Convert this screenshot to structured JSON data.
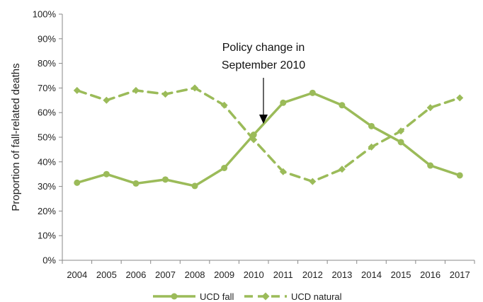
{
  "chart_data": {
    "type": "line",
    "title": "",
    "xlabel": "",
    "ylabel": "Proportion of fall-related deaths",
    "categories": [
      "2004",
      "2005",
      "2006",
      "2007",
      "2008",
      "2009",
      "2010",
      "2011",
      "2012",
      "2013",
      "2014",
      "2015",
      "2016",
      "2017"
    ],
    "ylim": [
      0,
      100
    ],
    "y_ticks": [
      "0%",
      "10%",
      "20%",
      "30%",
      "40%",
      "50%",
      "60%",
      "70%",
      "80%",
      "90%",
      "100%"
    ],
    "grid": false,
    "legend_position": "bottom",
    "series": [
      {
        "name": "UCD fall",
        "style": "solid",
        "color": "#9bbb59",
        "values": [
          31.5,
          35,
          31.2,
          32.8,
          30.2,
          37.5,
          51,
          64,
          68,
          63,
          54.5,
          48,
          38.5,
          34.5
        ]
      },
      {
        "name": "UCD natural",
        "style": "dashed",
        "color": "#9bbb59",
        "values": [
          69,
          65,
          69,
          67.5,
          70,
          63,
          49,
          36,
          32,
          37,
          46,
          52.5,
          62,
          66
        ]
      }
    ],
    "annotation": {
      "text_line1": "Policy change in",
      "text_line2": "September 2010",
      "points_to_category": "2010"
    }
  }
}
